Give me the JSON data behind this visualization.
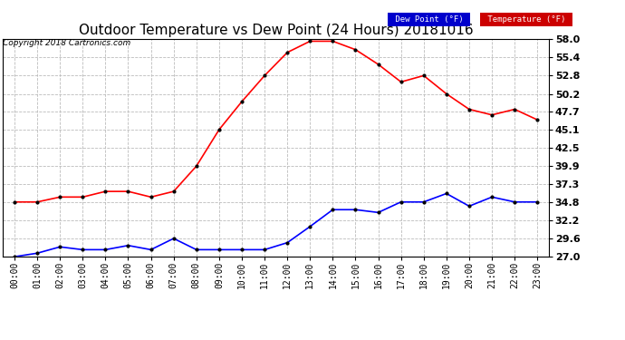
{
  "title": "Outdoor Temperature vs Dew Point (24 Hours) 20181016",
  "copyright": "Copyright 2018 Cartronics.com",
  "hours": [
    "00:00",
    "01:00",
    "02:00",
    "03:00",
    "04:00",
    "05:00",
    "06:00",
    "07:00",
    "08:00",
    "09:00",
    "10:00",
    "11:00",
    "12:00",
    "13:00",
    "14:00",
    "15:00",
    "16:00",
    "17:00",
    "18:00",
    "19:00",
    "20:00",
    "21:00",
    "22:00",
    "23:00"
  ],
  "temperature": [
    34.8,
    34.8,
    35.5,
    35.5,
    36.3,
    36.3,
    35.5,
    36.3,
    39.9,
    45.1,
    49.1,
    52.8,
    56.1,
    57.7,
    57.7,
    56.5,
    54.4,
    51.9,
    52.8,
    50.2,
    48.0,
    47.2,
    48.0,
    46.5
  ],
  "dew_point": [
    27.0,
    27.5,
    28.4,
    28.0,
    28.0,
    28.6,
    28.0,
    29.6,
    28.0,
    28.0,
    28.0,
    28.0,
    29.0,
    31.3,
    33.7,
    33.7,
    33.3,
    34.8,
    34.8,
    36.0,
    34.2,
    35.5,
    34.8,
    34.8
  ],
  "temp_color": "#ff0000",
  "dew_color": "#0000ff",
  "marker_color": "#000000",
  "ylim_min": 27.0,
  "ylim_max": 58.0,
  "yticks": [
    27.0,
    29.6,
    32.2,
    34.8,
    37.3,
    39.9,
    42.5,
    45.1,
    47.7,
    50.2,
    52.8,
    55.4,
    58.0
  ],
  "bg_color": "#ffffff",
  "grid_color": "#bbbbbb",
  "legend_temp_label": "Temperature (°F)",
  "legend_dew_label": "Dew Point (°F)",
  "title_fontsize": 11,
  "copyright_fontsize": 6.5,
  "tick_fontsize": 7,
  "ytick_fontsize": 8
}
